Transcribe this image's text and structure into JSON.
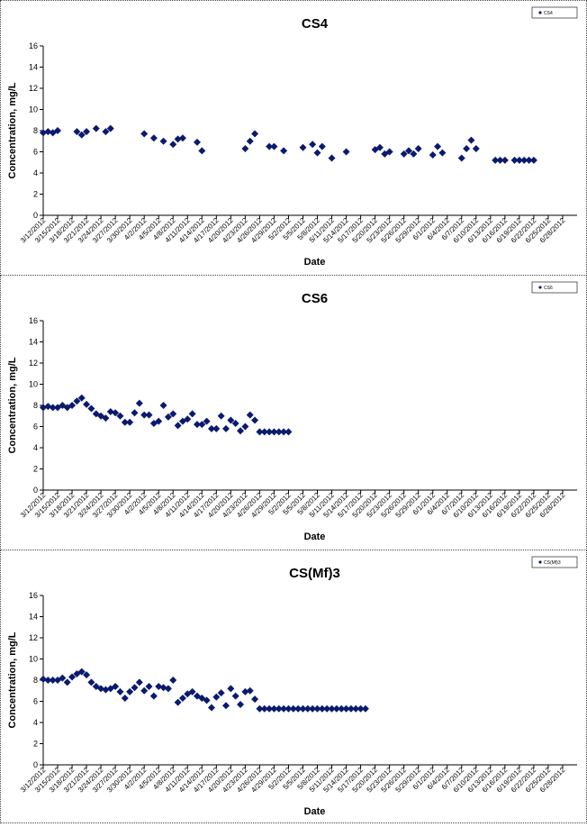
{
  "colors": {
    "marker": "#0a1a6e",
    "axis": "#000000",
    "border": "#444444"
  },
  "chart_data": [
    {
      "type": "scatter",
      "title": "CS4",
      "xlabel": "Date",
      "ylabel": "Concentration, mg/L",
      "ylim": [
        0,
        16
      ],
      "yticks": [
        0,
        2,
        4,
        6,
        8,
        10,
        12,
        14,
        16
      ],
      "xlim": [
        "3/12/2012",
        "7/1/2012"
      ],
      "xticks": [
        "3/12/2012",
        "3/15/2012",
        "3/18/2012",
        "3/21/2012",
        "3/24/2012",
        "3/27/2012",
        "3/30/2012",
        "4/2/2012",
        "4/5/2012",
        "4/8/2012",
        "4/11/2012",
        "4/14/2012",
        "4/17/2012",
        "4/20/2012",
        "4/23/2012",
        "4/26/2012",
        "4/29/2012",
        "5/2/2012",
        "5/5/2012",
        "5/8/2012",
        "5/11/2012",
        "5/14/2012",
        "5/17/2012",
        "5/20/2012",
        "5/23/2012",
        "5/26/2012",
        "5/29/2012",
        "6/1/2012",
        "6/4/2012",
        "6/7/2012",
        "6/10/2012",
        "6/13/2012",
        "6/16/2012",
        "6/19/2012",
        "6/22/2012",
        "6/25/2012",
        "6/28/2012"
      ],
      "grid": false,
      "legend": {
        "position": "top-right",
        "entries": [
          "CS4"
        ]
      },
      "series": [
        {
          "name": "CS4",
          "x": [
            "3/12/2012",
            "3/13/2012",
            "3/14/2012",
            "3/15/2012",
            "3/19/2012",
            "3/20/2012",
            "3/21/2012",
            "3/23/2012",
            "3/25/2012",
            "3/26/2012",
            "4/2/2012",
            "4/4/2012",
            "4/6/2012",
            "4/8/2012",
            "4/9/2012",
            "4/10/2012",
            "4/13/2012",
            "4/14/2012",
            "4/23/2012",
            "4/24/2012",
            "4/25/2012",
            "4/28/2012",
            "4/29/2012",
            "5/1/2012",
            "5/5/2012",
            "5/7/2012",
            "5/8/2012",
            "5/9/2012",
            "5/11/2012",
            "5/14/2012",
            "5/20/2012",
            "5/21/2012",
            "5/22/2012",
            "5/23/2012",
            "5/26/2012",
            "5/27/2012",
            "5/28/2012",
            "5/29/2012",
            "6/1/2012",
            "6/2/2012",
            "6/3/2012",
            "6/7/2012",
            "6/8/2012",
            "6/9/2012",
            "6/10/2012",
            "6/14/2012",
            "6/15/2012",
            "6/16/2012",
            "6/18/2012",
            "6/19/2012",
            "6/20/2012",
            "6/21/2012",
            "6/22/2012"
          ],
          "values": [
            7.8,
            7.9,
            7.8,
            8.0,
            7.9,
            7.6,
            7.9,
            8.2,
            7.9,
            8.2,
            7.7,
            7.3,
            7.0,
            6.7,
            7.2,
            7.3,
            6.9,
            6.1,
            6.3,
            7.0,
            7.7,
            6.5,
            6.5,
            6.1,
            6.4,
            6.7,
            5.9,
            6.5,
            5.4,
            6.0,
            6.2,
            6.4,
            5.8,
            6.0,
            5.8,
            6.1,
            5.8,
            6.3,
            5.7,
            6.5,
            5.9,
            5.4,
            6.3,
            7.1,
            6.3,
            5.2,
            5.2,
            5.2,
            5.2,
            5.2,
            5.2,
            5.2,
            5.2
          ]
        }
      ]
    },
    {
      "type": "scatter",
      "title": "CS6",
      "xlabel": "Date",
      "ylabel": "Concentration, mg/L",
      "ylim": [
        0,
        16
      ],
      "yticks": [
        0,
        2,
        4,
        6,
        8,
        10,
        12,
        14,
        16
      ],
      "xlim": [
        "3/12/2012",
        "7/1/2012"
      ],
      "xticks": [
        "3/12/2012",
        "3/15/2012",
        "3/18/2012",
        "3/21/2012",
        "3/24/2012",
        "3/27/2012",
        "3/30/2012",
        "4/2/2012",
        "4/5/2012",
        "4/8/2012",
        "4/11/2012",
        "4/14/2012",
        "4/17/2012",
        "4/20/2012",
        "4/23/2012",
        "4/26/2012",
        "4/29/2012",
        "5/2/2012",
        "5/5/2012",
        "5/8/2012",
        "5/11/2012",
        "5/14/2012",
        "5/17/2012",
        "5/20/2012",
        "5/23/2012",
        "5/26/2012",
        "5/29/2012",
        "6/1/2012",
        "6/4/2012",
        "6/7/2012",
        "6/10/2012",
        "6/13/2012",
        "6/16/2012",
        "6/19/2012",
        "6/22/2012",
        "6/25/2012",
        "6/28/2012"
      ],
      "grid": false,
      "legend": {
        "position": "top-right",
        "entries": [
          "CS6"
        ]
      },
      "series": [
        {
          "name": "CS6",
          "x": [
            "3/12/2012",
            "3/13/2012",
            "3/14/2012",
            "3/15/2012",
            "3/16/2012",
            "3/17/2012",
            "3/18/2012",
            "3/19/2012",
            "3/20/2012",
            "3/21/2012",
            "3/22/2012",
            "3/23/2012",
            "3/24/2012",
            "3/25/2012",
            "3/26/2012",
            "3/27/2012",
            "3/28/2012",
            "3/29/2012",
            "3/30/2012",
            "3/31/2012",
            "4/1/2012",
            "4/2/2012",
            "4/3/2012",
            "4/4/2012",
            "4/5/2012",
            "4/6/2012",
            "4/7/2012",
            "4/8/2012",
            "4/9/2012",
            "4/10/2012",
            "4/11/2012",
            "4/12/2012",
            "4/13/2012",
            "4/14/2012",
            "4/15/2012",
            "4/16/2012",
            "4/17/2012",
            "4/18/2012",
            "4/19/2012",
            "4/20/2012",
            "4/21/2012",
            "4/22/2012",
            "4/23/2012",
            "4/24/2012",
            "4/25/2012",
            "4/26/2012",
            "4/27/2012",
            "4/28/2012",
            "4/29/2012",
            "4/30/2012",
            "5/1/2012",
            "5/2/2012"
          ],
          "values": [
            7.8,
            7.9,
            7.8,
            7.8,
            8.0,
            7.8,
            8.0,
            8.4,
            8.7,
            8.1,
            7.7,
            7.2,
            7.0,
            6.8,
            7.4,
            7.3,
            7.0,
            6.4,
            6.4,
            7.3,
            8.2,
            7.1,
            7.1,
            6.3,
            6.5,
            8.0,
            6.9,
            7.2,
            6.1,
            6.5,
            6.7,
            7.2,
            6.2,
            6.2,
            6.5,
            5.8,
            5.8,
            7.0,
            5.8,
            6.6,
            6.3,
            5.6,
            6.0,
            7.1,
            6.6,
            5.5,
            5.5,
            5.5,
            5.5,
            5.5,
            5.5,
            5.5
          ]
        }
      ]
    },
    {
      "type": "scatter",
      "title": "CS(Mf)3",
      "xlabel": "Date",
      "ylabel": "Concentration, mg/L",
      "ylim": [
        0,
        16
      ],
      "yticks": [
        0,
        2,
        4,
        6,
        8,
        10,
        12,
        14,
        16
      ],
      "xlim": [
        "3/12/2012",
        "7/1/2012"
      ],
      "xticks": [
        "3/12/2012",
        "3/15/2012",
        "3/18/2012",
        "3/21/2012",
        "3/24/2012",
        "3/27/2012",
        "3/30/2012",
        "4/2/2012",
        "4/5/2012",
        "4/8/2012",
        "4/11/2012",
        "4/14/2012",
        "4/17/2012",
        "4/20/2012",
        "4/23/2012",
        "4/26/2012",
        "4/29/2012",
        "5/2/2012",
        "5/5/2012",
        "5/8/2012",
        "5/11/2012",
        "5/14/2012",
        "5/17/2012",
        "5/20/2012",
        "5/23/2012",
        "5/26/2012",
        "5/29/2012",
        "6/1/2012",
        "6/4/2012",
        "6/7/2012",
        "6/10/2012",
        "6/13/2012",
        "6/16/2012",
        "6/19/2012",
        "6/22/2012",
        "6/25/2012",
        "6/28/2012"
      ],
      "grid": false,
      "legend": {
        "position": "top-right",
        "entries": [
          "CS(Mf)3"
        ]
      },
      "series": [
        {
          "name": "CS(Mf)3",
          "x": [
            "3/12/2012",
            "3/13/2012",
            "3/14/2012",
            "3/15/2012",
            "3/16/2012",
            "3/17/2012",
            "3/18/2012",
            "3/19/2012",
            "3/20/2012",
            "3/21/2012",
            "3/22/2012",
            "3/23/2012",
            "3/24/2012",
            "3/25/2012",
            "3/26/2012",
            "3/27/2012",
            "3/28/2012",
            "3/29/2012",
            "3/30/2012",
            "3/31/2012",
            "4/1/2012",
            "4/2/2012",
            "4/3/2012",
            "4/4/2012",
            "4/5/2012",
            "4/6/2012",
            "4/7/2012",
            "4/8/2012",
            "4/9/2012",
            "4/10/2012",
            "4/11/2012",
            "4/12/2012",
            "4/13/2012",
            "4/14/2012",
            "4/15/2012",
            "4/16/2012",
            "4/17/2012",
            "4/18/2012",
            "4/19/2012",
            "4/20/2012",
            "4/21/2012",
            "4/22/2012",
            "4/23/2012",
            "4/24/2012",
            "4/25/2012",
            "4/26/2012",
            "4/27/2012",
            "4/28/2012",
            "4/29/2012",
            "4/30/2012",
            "5/1/2012",
            "5/2/2012",
            "5/3/2012",
            "5/4/2012",
            "5/5/2012",
            "5/6/2012",
            "5/7/2012",
            "5/8/2012",
            "5/9/2012",
            "5/10/2012",
            "5/11/2012",
            "5/12/2012",
            "5/13/2012",
            "5/14/2012",
            "5/15/2012",
            "5/16/2012",
            "5/17/2012",
            "5/18/2012"
          ],
          "values": [
            8.1,
            8.0,
            8.0,
            8.0,
            8.2,
            7.8,
            8.3,
            8.6,
            8.8,
            8.5,
            7.8,
            7.4,
            7.2,
            7.1,
            7.2,
            7.4,
            6.9,
            6.3,
            6.9,
            7.3,
            7.8,
            7.0,
            7.4,
            6.5,
            7.4,
            7.3,
            7.2,
            8.0,
            5.9,
            6.3,
            6.7,
            6.9,
            6.5,
            6.3,
            6.1,
            5.4,
            6.4,
            6.8,
            5.6,
            7.2,
            6.5,
            5.7,
            6.9,
            7.0,
            6.2,
            5.3,
            5.3,
            5.3,
            5.3,
            5.3,
            5.3,
            5.3,
            5.3,
            5.3,
            5.3,
            5.3,
            5.3,
            5.3,
            5.3,
            5.3,
            5.3,
            5.3,
            5.3,
            5.3,
            5.3,
            5.3,
            5.3,
            5.3
          ]
        }
      ]
    }
  ]
}
